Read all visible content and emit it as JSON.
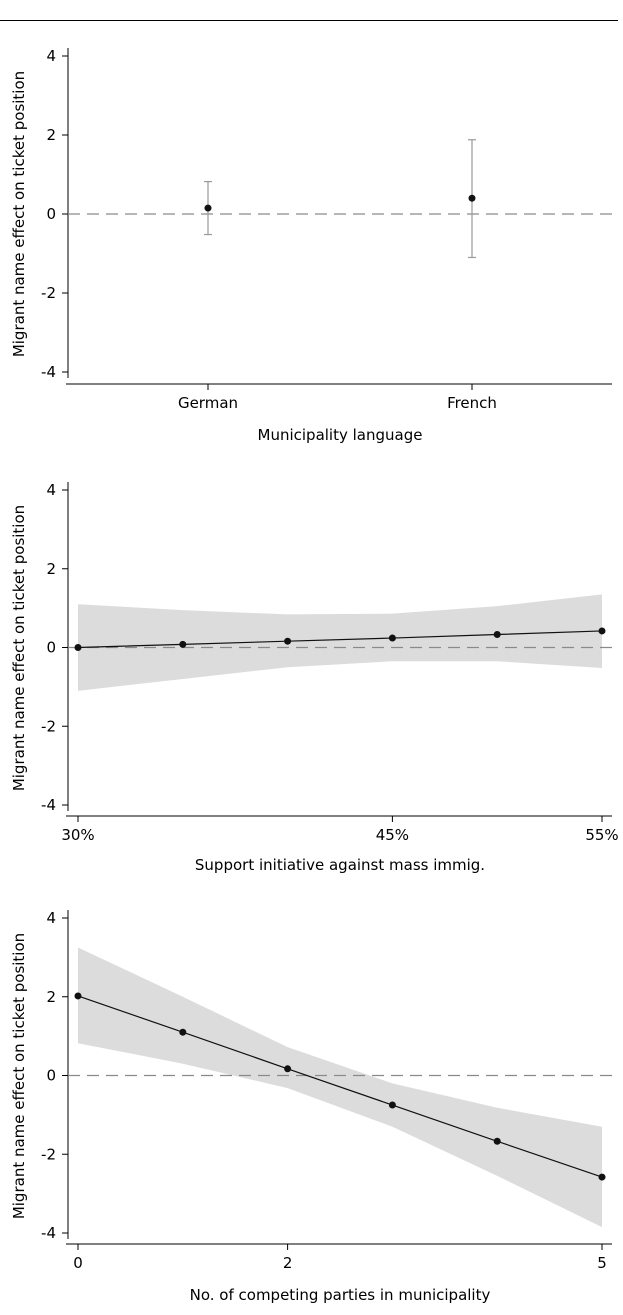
{
  "chart_data": [
    {
      "type": "scatter",
      "ylabel": "Migrant name effect on ticket position",
      "xlabel": "Municipality language",
      "categories": [
        "German",
        "French"
      ],
      "points": [
        {
          "category": "German",
          "estimate": 0.15,
          "ci_low": -0.52,
          "ci_high": 0.82
        },
        {
          "category": "French",
          "estimate": 0.4,
          "ci_low": -1.1,
          "ci_high": 1.88
        }
      ],
      "ylim": [
        -4,
        4
      ],
      "yticks": [
        "4",
        "2",
        "0",
        "-2",
        "-4"
      ],
      "reference_line": 0,
      "grid": false,
      "colors": {
        "marker": "#111111",
        "ci": "#999999",
        "reference": "#8a8a8a"
      }
    },
    {
      "type": "line",
      "ylabel": "Migrant name effect on ticket position",
      "xlabel": "Support initiative against mass immig.",
      "x": [
        30,
        35,
        40,
        45,
        50,
        55
      ],
      "y": [
        0.0,
        0.08,
        0.16,
        0.24,
        0.33,
        0.42
      ],
      "band_low": [
        -1.1,
        -0.8,
        -0.5,
        -0.35,
        -0.35,
        -0.52
      ],
      "band_high": [
        1.1,
        0.95,
        0.84,
        0.86,
        1.05,
        1.35
      ],
      "xlim": [
        30,
        55
      ],
      "xticks": [
        {
          "value": 30,
          "label": "30%"
        },
        {
          "value": 45,
          "label": "45%"
        },
        {
          "value": 55,
          "label": "55%"
        }
      ],
      "ylim": [
        -4,
        4
      ],
      "yticks": [
        "4",
        "2",
        "0",
        "-2",
        "-4"
      ],
      "reference_line": 0,
      "grid": false,
      "colors": {
        "line": "#111111",
        "band": "#dcdcdc",
        "reference": "#8a8a8a"
      }
    },
    {
      "type": "line",
      "ylabel": "Migrant name effect on ticket position",
      "xlabel": "No. of competing parties in municipality",
      "x": [
        0,
        1,
        2,
        3,
        4,
        5
      ],
      "y": [
        2.02,
        1.1,
        0.17,
        -0.75,
        -1.67,
        -2.58
      ],
      "band_low": [
        0.82,
        0.3,
        -0.32,
        -1.3,
        -2.55,
        -3.85
      ],
      "band_high": [
        3.25,
        2.0,
        0.72,
        -0.2,
        -0.82,
        -1.3
      ],
      "xlim": [
        0,
        5
      ],
      "xticks": [
        {
          "value": 0,
          "label": "0"
        },
        {
          "value": 2,
          "label": "2"
        },
        {
          "value": 5,
          "label": "5"
        }
      ],
      "ylim": [
        -4,
        4
      ],
      "yticks": [
        "4",
        "2",
        "0",
        "-2",
        "-4"
      ],
      "reference_line": 0,
      "grid": false,
      "colors": {
        "line": "#111111",
        "band": "#dcdcdc",
        "reference": "#8a8a8a"
      }
    }
  ]
}
